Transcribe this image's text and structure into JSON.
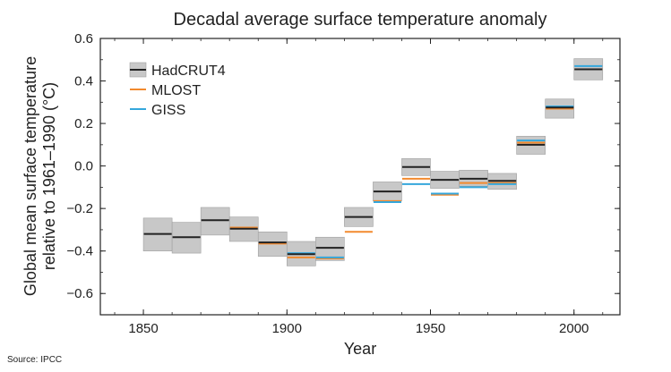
{
  "chart_data": {
    "type": "bar",
    "title": "Decadal average surface temperature anomaly",
    "xlabel": "Year",
    "ylabel_line1": "Global mean surface temperature",
    "ylabel_line2": "relative to 1961–1990 (°C)",
    "source": "Source: IPCC",
    "xlim": [
      1835,
      2016
    ],
    "ylim": [
      -0.7,
      0.6
    ],
    "xticks": [
      1850,
      1900,
      1950,
      2000
    ],
    "yticks": [
      0.6,
      0.4,
      0.2,
      0.0,
      -0.2,
      -0.4,
      -0.6
    ],
    "ytick_labels": [
      "0.6",
      "0.4",
      "0.2",
      "0.0",
      "−0.2",
      "−0.4",
      "−0.6"
    ],
    "decades": [
      1850,
      1860,
      1870,
      1880,
      1890,
      1900,
      1910,
      1920,
      1930,
      1940,
      1950,
      1960,
      1970,
      1980,
      1990,
      2000
    ],
    "series": [
      {
        "name": "HadCRUT4",
        "color": "#222222",
        "values": [
          -0.32,
          -0.335,
          -0.255,
          -0.295,
          -0.36,
          -0.415,
          -0.385,
          -0.24,
          -0.12,
          -0.005,
          -0.065,
          -0.06,
          -0.07,
          0.1,
          0.275,
          0.455
        ]
      },
      {
        "name": "MLOST",
        "color": "#f28a2e",
        "values": [
          null,
          null,
          null,
          -0.29,
          -0.365,
          -0.43,
          -0.435,
          -0.31,
          -0.165,
          -0.06,
          -0.135,
          -0.08,
          -0.08,
          0.11,
          0.27,
          0.455
        ]
      },
      {
        "name": "GISS",
        "color": "#35a7dc",
        "values": [
          null,
          null,
          null,
          null,
          null,
          -0.41,
          -0.43,
          null,
          -0.17,
          -0.085,
          -0.13,
          -0.1,
          -0.085,
          0.12,
          0.28,
          0.47
        ]
      }
    ],
    "uncertainty_low": [
      -0.4,
      -0.41,
      -0.325,
      -0.355,
      -0.425,
      -0.47,
      -0.445,
      -0.285,
      -0.165,
      -0.045,
      -0.105,
      -0.095,
      -0.11,
      0.055,
      0.225,
      0.405
    ],
    "uncertainty_high": [
      -0.245,
      -0.265,
      -0.195,
      -0.24,
      -0.31,
      -0.355,
      -0.335,
      -0.195,
      -0.075,
      0.035,
      -0.025,
      -0.02,
      -0.035,
      0.14,
      0.315,
      0.505
    ],
    "band_color": "#c8c8c8",
    "band_edge_color": "#a0a0a0",
    "legend_position": "top-left"
  }
}
